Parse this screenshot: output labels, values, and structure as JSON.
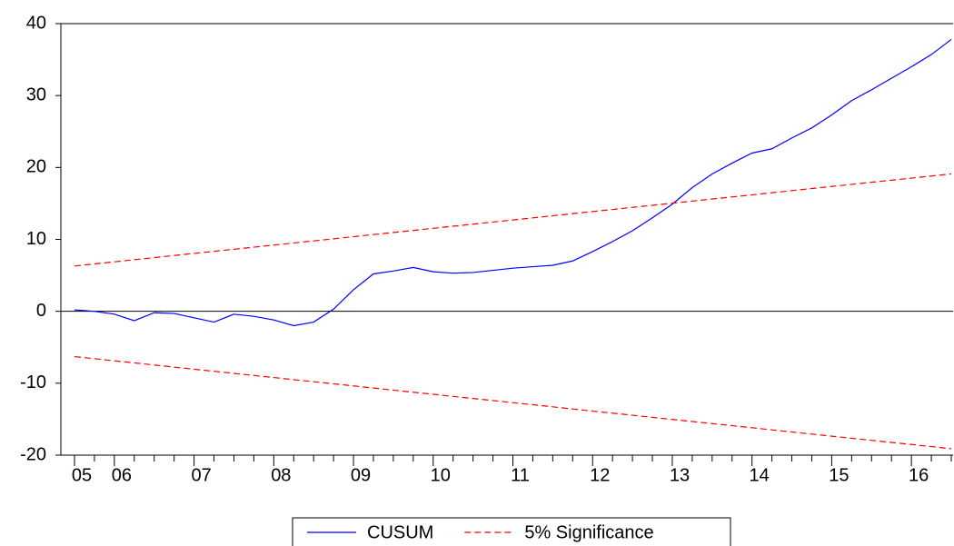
{
  "chart_data": {
    "type": "line",
    "categories": [
      "05",
      null,
      "06",
      null,
      null,
      null,
      "07",
      null,
      null,
      null,
      "08",
      null,
      null,
      null,
      "09",
      null,
      null,
      null,
      "10",
      null,
      null,
      null,
      "11",
      null,
      null,
      null,
      "12",
      null,
      null,
      null,
      "13",
      null,
      null,
      null,
      "14",
      null,
      null,
      null,
      "15",
      null,
      null,
      null,
      "16",
      null,
      null
    ],
    "series": [
      {
        "name": "CUSUM",
        "color": "#0000ff",
        "dash": false,
        "values": [
          0.2,
          0.0,
          -0.4,
          -1.3,
          -0.2,
          -0.3,
          -0.9,
          -1.5,
          -0.4,
          -0.7,
          -1.2,
          -2.0,
          -1.5,
          0.3,
          3.0,
          5.2,
          5.6,
          6.1,
          5.5,
          5.3,
          5.4,
          5.7,
          6.0,
          6.2,
          6.4,
          7.0,
          8.3,
          9.7,
          11.2,
          13.0,
          14.9,
          17.2,
          19.1,
          20.6,
          22.0,
          22.6,
          24.1,
          25.5,
          27.3,
          29.3,
          30.8,
          32.4,
          34.0,
          35.7,
          37.8
        ]
      },
      {
        "name": "5% Significance",
        "color": "#ff0000",
        "dash": true,
        "values": [
          6.3,
          6.59,
          6.88,
          7.17,
          7.46,
          7.76,
          8.05,
          8.34,
          8.63,
          8.92,
          9.21,
          9.5,
          9.79,
          10.08,
          10.37,
          10.67,
          10.96,
          11.25,
          11.54,
          11.83,
          12.12,
          12.41,
          12.7,
          12.99,
          13.28,
          13.58,
          13.87,
          14.16,
          14.45,
          14.74,
          15.03,
          15.32,
          15.61,
          15.9,
          16.19,
          16.49,
          16.78,
          17.07,
          17.36,
          17.65,
          17.94,
          18.23,
          18.52,
          18.81,
          19.1
        ]
      },
      {
        "color": "#ff0000",
        "dash": true,
        "values": [
          -6.3,
          -6.59,
          -6.88,
          -7.17,
          -7.46,
          -7.76,
          -8.05,
          -8.34,
          -8.63,
          -8.92,
          -9.21,
          -9.5,
          -9.79,
          -10.08,
          -10.37,
          -10.67,
          -10.96,
          -11.25,
          -11.54,
          -11.83,
          -12.12,
          -12.41,
          -12.7,
          -12.99,
          -13.28,
          -13.58,
          -13.87,
          -14.16,
          -14.45,
          -14.74,
          -15.03,
          -15.32,
          -15.61,
          -15.9,
          -16.19,
          -16.49,
          -16.78,
          -17.07,
          -17.36,
          -17.65,
          -17.94,
          -18.23,
          -18.52,
          -18.81,
          -19.1
        ]
      }
    ],
    "ylim": [
      -20,
      40
    ],
    "yticks": [
      -20,
      -10,
      0,
      10,
      20,
      30,
      40
    ],
    "zero_line": true,
    "legend": "bottom"
  }
}
